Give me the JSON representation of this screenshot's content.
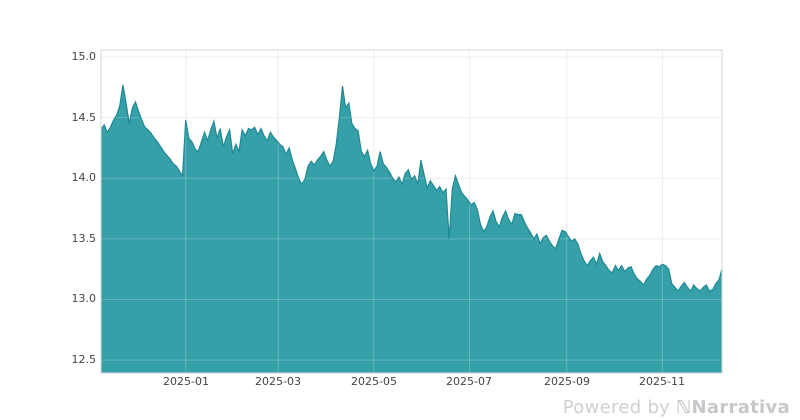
{
  "chart_data": {
    "type": "area",
    "title": "",
    "grid": true,
    "legend": false,
    "x_axis": {
      "tick_labels": [
        "2025-01",
        "2025-03",
        "2025-05",
        "2025-07",
        "2025-09",
        "2025-11"
      ],
      "range_dates": [
        "2024-11-08",
        "2025-12-09"
      ]
    },
    "y_axis": {
      "tick_labels": [
        "15.0",
        "14.5",
        "14.0",
        "13.5",
        "13.0",
        "12.5"
      ],
      "ticks": [
        15.0,
        14.5,
        14.0,
        13.5,
        13.0,
        12.5
      ],
      "range": [
        12.39,
        15.06
      ]
    },
    "series": [
      {
        "name": "price",
        "start_date": "2024-11-08",
        "interval_days": 2,
        "values": [
          14.4,
          14.44,
          14.38,
          14.42,
          14.48,
          14.52,
          14.6,
          14.77,
          14.62,
          14.45,
          14.58,
          14.63,
          14.55,
          14.48,
          14.42,
          14.4,
          14.37,
          14.33,
          14.3,
          14.26,
          14.22,
          14.19,
          14.16,
          14.12,
          14.1,
          14.06,
          14.02,
          14.48,
          14.33,
          14.3,
          14.24,
          14.22,
          14.3,
          14.38,
          14.31,
          14.4,
          14.47,
          14.33,
          14.41,
          14.26,
          14.34,
          14.4,
          14.2,
          14.28,
          14.22,
          14.4,
          14.35,
          14.41,
          14.4,
          14.42,
          14.36,
          14.41,
          14.35,
          14.31,
          14.38,
          14.34,
          14.31,
          14.28,
          14.26,
          14.2,
          14.25,
          14.15,
          14.08,
          14.0,
          13.95,
          13.99,
          14.1,
          14.14,
          14.11,
          14.15,
          14.18,
          14.22,
          14.15,
          14.1,
          14.14,
          14.28,
          14.5,
          14.76,
          14.58,
          14.62,
          14.45,
          14.41,
          14.39,
          14.22,
          14.18,
          14.23,
          14.12,
          14.06,
          14.1,
          14.22,
          14.12,
          14.09,
          14.05,
          14.0,
          13.97,
          14.01,
          13.95,
          14.04,
          14.07,
          13.99,
          14.02,
          13.95,
          14.15,
          14.03,
          13.92,
          13.98,
          13.94,
          13.9,
          13.93,
          13.88,
          13.91,
          13.5,
          13.91,
          14.02,
          13.95,
          13.88,
          13.85,
          13.82,
          13.78,
          13.8,
          13.74,
          13.62,
          13.56,
          13.6,
          13.68,
          13.73,
          13.64,
          13.6,
          13.68,
          13.73,
          13.66,
          13.62,
          13.71,
          13.7,
          13.7,
          13.64,
          13.59,
          13.55,
          13.5,
          13.54,
          13.46,
          13.51,
          13.53,
          13.48,
          13.44,
          13.42,
          13.5,
          13.57,
          13.56,
          13.52,
          13.48,
          13.5,
          13.46,
          13.38,
          13.32,
          13.28,
          13.32,
          13.35,
          13.29,
          13.38,
          13.31,
          13.28,
          13.24,
          13.22,
          13.28,
          13.24,
          13.28,
          13.23,
          13.26,
          13.27,
          13.21,
          13.17,
          13.15,
          13.12,
          13.17,
          13.2,
          13.25,
          13.28,
          13.27,
          13.29,
          13.28,
          13.25,
          13.13,
          13.1,
          13.07,
          13.11,
          13.14,
          13.1,
          13.07,
          13.12,
          13.09,
          13.07,
          13.1,
          13.12,
          13.07,
          13.08,
          13.13,
          13.16,
          13.25
        ]
      }
    ],
    "colors": {
      "area_fill": "#35a0a8",
      "line": "#1f8a94",
      "gridline": "#e8e8e8",
      "plot_border": "#d6d6d6",
      "axis_text": "#444444",
      "background": "#ffffff"
    }
  },
  "watermark": {
    "powered_by": "Powered by ",
    "logo_glyph": "ℕ",
    "brand": "Narrativa"
  }
}
